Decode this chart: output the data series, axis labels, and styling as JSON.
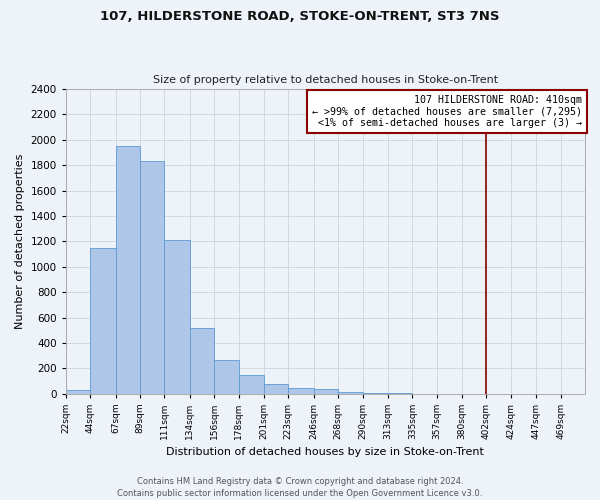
{
  "title": "107, HILDERSTONE ROAD, STOKE-ON-TRENT, ST3 7NS",
  "subtitle": "Size of property relative to detached houses in Stoke-on-Trent",
  "xlabel": "Distribution of detached houses by size in Stoke-on-Trent",
  "ylabel": "Number of detached properties",
  "bin_labels": [
    "22sqm",
    "44sqm",
    "67sqm",
    "89sqm",
    "111sqm",
    "134sqm",
    "156sqm",
    "178sqm",
    "201sqm",
    "223sqm",
    "246sqm",
    "268sqm",
    "290sqm",
    "313sqm",
    "335sqm",
    "357sqm",
    "380sqm",
    "402sqm",
    "424sqm",
    "447sqm",
    "469sqm"
  ],
  "bar_values": [
    28,
    1150,
    1950,
    1830,
    1210,
    520,
    265,
    148,
    80,
    48,
    40,
    10,
    5,
    5,
    2,
    2,
    2,
    2,
    2,
    2,
    2
  ],
  "bar_color": "#aec6e8",
  "bar_edgecolor": "#5b9bd5",
  "vline_x": 402,
  "vline_color": "#8b0000",
  "annotation_text": "107 HILDERSTONE ROAD: 410sqm\n← >99% of detached houses are smaller (7,295)\n<1% of semi-detached houses are larger (3) →",
  "annotation_bbox_edgecolor": "#8b0000",
  "annotation_bbox_facecolor": "#ffffff",
  "ylim": [
    0,
    2400
  ],
  "yticks": [
    0,
    200,
    400,
    600,
    800,
    1000,
    1200,
    1400,
    1600,
    1800,
    2000,
    2200,
    2400
  ],
  "footer_line1": "Contains HM Land Registry data © Crown copyright and database right 2024.",
  "footer_line2": "Contains public sector information licensed under the Open Government Licence v3.0.",
  "bin_edges": [
    22,
    44,
    67,
    89,
    111,
    134,
    156,
    178,
    201,
    223,
    246,
    268,
    290,
    313,
    335,
    357,
    380,
    402,
    424,
    447,
    469
  ],
  "background_color": "#eef2f9"
}
